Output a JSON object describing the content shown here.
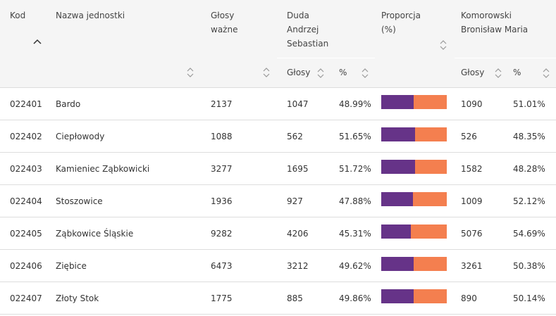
{
  "table": {
    "headers": {
      "kod": "Kod",
      "nazwa": "Nazwa jednostki",
      "glosy_wazne_line1": "Głosy",
      "glosy_wazne_line2": "ważne",
      "duda_line1": "Duda",
      "duda_line2": "Andrzej",
      "duda_line3": "Sebastian",
      "proporcja_line1": "Proporcja",
      "proporcja_line2": "(%)",
      "komorowski_line1": "Komorowski",
      "komorowski_line2": "Bronisław Maria",
      "sub_glosy": "Głosy",
      "sub_pct": "%"
    },
    "colors": {
      "duda": "#663388",
      "komorowski": "#f47f4f",
      "header_bg": "#f5f5f5",
      "row_border": "#dddddd"
    },
    "rows": [
      {
        "kod": "022401",
        "nazwa": "Bardo",
        "wazne": "2137",
        "duda_glosy": "1047",
        "duda_pct": "48.99%",
        "duda_share": 48.99,
        "kom_glosy": "1090",
        "kom_pct": "51.01%"
      },
      {
        "kod": "022402",
        "nazwa": "Ciepłowody",
        "wazne": "1088",
        "duda_glosy": "562",
        "duda_pct": "51.65%",
        "duda_share": 51.65,
        "kom_glosy": "526",
        "kom_pct": "48.35%"
      },
      {
        "kod": "022403",
        "nazwa": "Kamieniec Ząbkowicki",
        "wazne": "3277",
        "duda_glosy": "1695",
        "duda_pct": "51.72%",
        "duda_share": 51.72,
        "kom_glosy": "1582",
        "kom_pct": "48.28%"
      },
      {
        "kod": "022404",
        "nazwa": "Stoszowice",
        "wazne": "1936",
        "duda_glosy": "927",
        "duda_pct": "47.88%",
        "duda_share": 47.88,
        "kom_glosy": "1009",
        "kom_pct": "52.12%"
      },
      {
        "kod": "022405",
        "nazwa": "Ząbkowice Śląskie",
        "wazne": "9282",
        "duda_glosy": "4206",
        "duda_pct": "45.31%",
        "duda_share": 45.31,
        "kom_glosy": "5076",
        "kom_pct": "54.69%"
      },
      {
        "kod": "022406",
        "nazwa": "Ziębice",
        "wazne": "6473",
        "duda_glosy": "3212",
        "duda_pct": "49.62%",
        "duda_share": 49.62,
        "kom_glosy": "3261",
        "kom_pct": "50.38%"
      },
      {
        "kod": "022407",
        "nazwa": "Złoty Stok",
        "wazne": "1775",
        "duda_glosy": "885",
        "duda_pct": "49.86%",
        "duda_share": 49.86,
        "kom_glosy": "890",
        "kom_pct": "50.14%"
      }
    ]
  }
}
